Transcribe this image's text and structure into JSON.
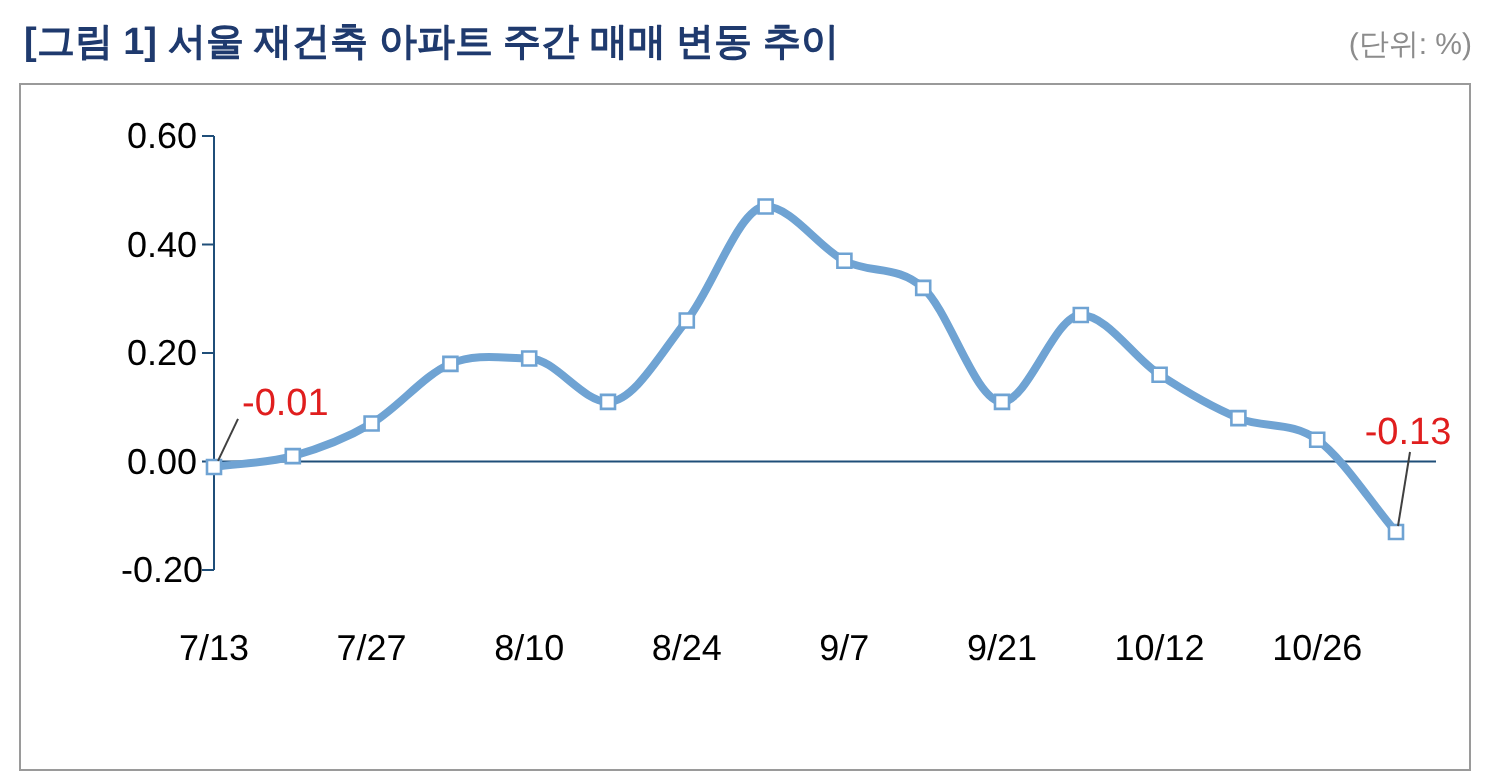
{
  "chart_data": {
    "type": "line",
    "title": "[그림 1] 서울 재건축 아파트 주간 매매 변동 추이",
    "annotations": [
      "(단위: %)"
    ],
    "categories": [
      "7/13",
      null,
      "7/27",
      null,
      "8/10",
      null,
      "8/24",
      null,
      "9/7",
      null,
      "9/21",
      null,
      "10/12",
      null,
      "10/26",
      null
    ],
    "values": [
      -0.01,
      0.01,
      0.07,
      0.18,
      0.19,
      0.11,
      0.26,
      0.47,
      0.37,
      0.32,
      0.11,
      0.27,
      0.16,
      0.08,
      0.04,
      -0.13
    ],
    "value_labels": [
      "-0.01",
      null,
      null,
      null,
      null,
      null,
      null,
      null,
      null,
      null,
      null,
      null,
      null,
      null,
      null,
      "-0.13"
    ],
    "ref_lines": [
      {
        "axis": "y",
        "value": 0,
        "color": "#1f4e79"
      }
    ],
    "color": "#6fa3d3",
    "marker": "square",
    "line_style": "solid",
    "ylim": [
      -0.2,
      0.6
    ],
    "yticks": [
      {
        "value": 0.6,
        "label": "0.60"
      },
      {
        "value": 0.4,
        "label": "0.40"
      },
      {
        "value": 0.2,
        "label": "0.20"
      },
      {
        "value": 0,
        "label": "0.00"
      },
      {
        "value": -0.2,
        "label": "-0.20"
      }
    ]
  }
}
